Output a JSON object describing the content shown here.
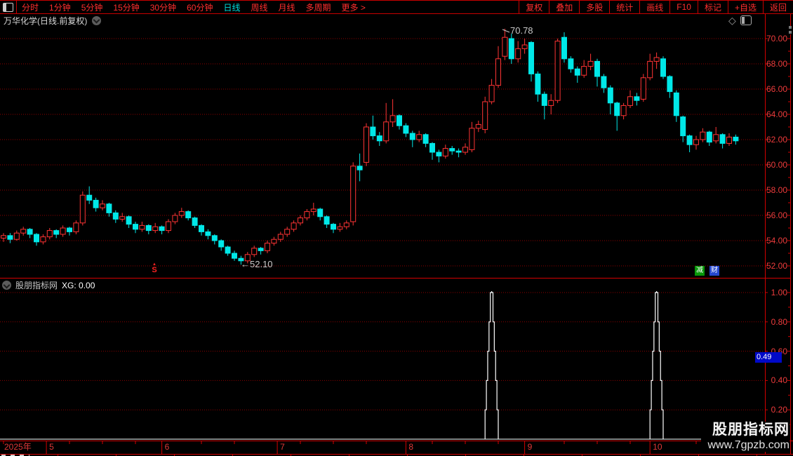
{
  "colors": {
    "up": "#ff3434",
    "down": "#00e8e8",
    "grid": "#8f0000",
    "axis_line": "#d40000",
    "axis_text": "#ee3c3c",
    "indicator_line": "#ffffff",
    "badge_bg": "#0009c8",
    "active_tab": "#00dede",
    "menu_text": "#ff2e2e"
  },
  "icons": {
    "diamond": "◇",
    "left_arrow": "←",
    "up_triangle": "▲"
  },
  "menu": {
    "left": [
      "分时",
      "1分钟",
      "5分钟",
      "15分钟",
      "30分钟",
      "60分钟",
      "日线",
      "周线",
      "月线",
      "多周期",
      "更多 >"
    ],
    "active": "日线",
    "right": [
      "复权",
      "叠加",
      "多股",
      "统计",
      "画线",
      "F10",
      "标记",
      "+自选",
      "返回"
    ]
  },
  "title": {
    "text": "万华化学(日线.前复权)"
  },
  "main_chart": {
    "high_annotation": "70.78",
    "low_annotation": "52.10",
    "markers": {
      "ex_dividend": "S",
      "jian": "减",
      "cai": "财"
    }
  },
  "sub_chart": {
    "name": "股朋指标网",
    "series_label": "XG:",
    "series_value": "0.00",
    "axis_badge": "0.49"
  },
  "watermark": {
    "line1": "股朋指标网",
    "line2": "www.7gpzb.com"
  },
  "chart_data": {
    "type": "candlestick",
    "title": "万华化学(日线.前复权)",
    "x": {
      "year_label": "2025年",
      "month_labels": [
        "5",
        "6",
        "7",
        "8",
        "9",
        "10"
      ],
      "month_day_index": [
        6.5,
        24,
        41.5,
        61,
        79,
        98
      ],
      "num_days": 112
    },
    "price_panel": {
      "ylim": [
        51.6,
        71.6
      ],
      "yticks": [
        52,
        54,
        56,
        58,
        60,
        62,
        64,
        66,
        68,
        70
      ],
      "high_annotation": 70.78,
      "low_annotation": 52.1,
      "candles": [
        [
          54.2,
          54.6,
          53.9,
          54.4
        ],
        [
          54.4,
          54.6,
          53.8,
          54.1
        ],
        [
          54.1,
          54.8,
          54.0,
          54.6
        ],
        [
          54.6,
          55.1,
          54.4,
          54.9
        ],
        [
          54.9,
          55.0,
          54.2,
          54.5
        ],
        [
          54.5,
          54.6,
          53.6,
          53.9
        ],
        [
          53.9,
          54.5,
          53.7,
          54.3
        ],
        [
          54.3,
          55.0,
          54.1,
          54.8
        ],
        [
          54.8,
          54.9,
          54.2,
          54.5
        ],
        [
          54.5,
          55.2,
          54.3,
          55.0
        ],
        [
          55.0,
          55.1,
          54.4,
          54.7
        ],
        [
          54.7,
          55.6,
          54.5,
          55.4
        ],
        [
          55.4,
          57.9,
          55.2,
          57.6
        ],
        [
          57.6,
          58.3,
          56.9,
          57.2
        ],
        [
          57.2,
          57.4,
          56.3,
          56.6
        ],
        [
          56.6,
          57.2,
          56.4,
          56.9
        ],
        [
          56.9,
          57.0,
          55.9,
          56.2
        ],
        [
          56.2,
          56.4,
          55.4,
          55.7
        ],
        [
          55.7,
          56.2,
          55.5,
          55.9
        ],
        [
          55.9,
          56.0,
          55.0,
          55.3
        ],
        [
          55.3,
          55.5,
          54.6,
          54.9
        ],
        [
          54.9,
          55.5,
          54.7,
          55.2
        ],
        [
          55.2,
          55.3,
          54.5,
          54.8
        ],
        [
          54.8,
          55.4,
          54.6,
          55.1
        ],
        [
          55.1,
          55.2,
          54.5,
          54.8
        ],
        [
          54.8,
          55.7,
          54.6,
          55.5
        ],
        [
          55.5,
          56.2,
          55.3,
          56.0
        ],
        [
          56.0,
          56.6,
          55.8,
          56.3
        ],
        [
          56.3,
          56.4,
          55.6,
          55.8
        ],
        [
          55.8,
          55.9,
          55.0,
          55.2
        ],
        [
          55.2,
          55.3,
          54.4,
          54.7
        ],
        [
          54.7,
          54.9,
          54.1,
          54.4
        ],
        [
          54.4,
          54.5,
          53.7,
          54.0
        ],
        [
          54.0,
          54.1,
          53.2,
          53.5
        ],
        [
          53.5,
          53.6,
          52.8,
          53.0
        ],
        [
          53.0,
          53.2,
          52.4,
          52.6
        ],
        [
          52.6,
          52.8,
          52.1,
          52.4
        ],
        [
          52.4,
          53.1,
          52.2,
          52.9
        ],
        [
          52.9,
          53.6,
          52.7,
          53.4
        ],
        [
          53.4,
          53.5,
          52.9,
          53.2
        ],
        [
          53.2,
          54.0,
          53.0,
          53.8
        ],
        [
          53.8,
          54.3,
          53.6,
          54.1
        ],
        [
          54.1,
          54.7,
          53.9,
          54.5
        ],
        [
          54.5,
          55.1,
          54.3,
          54.9
        ],
        [
          54.9,
          55.6,
          54.7,
          55.4
        ],
        [
          55.4,
          56.0,
          55.2,
          55.8
        ],
        [
          55.8,
          56.5,
          55.6,
          56.3
        ],
        [
          56.3,
          57.0,
          56.0,
          56.5
        ],
        [
          56.5,
          56.6,
          55.6,
          55.9
        ],
        [
          55.9,
          56.0,
          55.0,
          55.3
        ],
        [
          55.3,
          55.4,
          54.6,
          54.9
        ],
        [
          54.9,
          55.4,
          54.7,
          55.1
        ],
        [
          55.1,
          55.6,
          54.9,
          55.4
        ],
        [
          55.5,
          60.2,
          55.2,
          59.9
        ],
        [
          59.9,
          60.9,
          58.7,
          59.6
        ],
        [
          60.2,
          63.3,
          59.9,
          63.0
        ],
        [
          63.0,
          63.9,
          62.0,
          62.3
        ],
        [
          62.3,
          62.6,
          61.5,
          61.9
        ],
        [
          61.9,
          64.9,
          61.7,
          63.4
        ],
        [
          63.4,
          65.2,
          63.0,
          63.9
        ],
        [
          63.9,
          64.0,
          62.8,
          63.1
        ],
        [
          63.1,
          63.3,
          62.2,
          62.5
        ],
        [
          62.5,
          62.7,
          61.4,
          62.0
        ],
        [
          62.0,
          62.7,
          61.8,
          62.4
        ],
        [
          62.4,
          62.5,
          61.4,
          61.7
        ],
        [
          61.7,
          61.8,
          60.4,
          61.0
        ],
        [
          61.0,
          61.2,
          60.2,
          60.7
        ],
        [
          60.7,
          61.6,
          60.5,
          61.3
        ],
        [
          61.3,
          61.5,
          60.8,
          61.1
        ],
        [
          61.1,
          61.3,
          60.6,
          61.0
        ],
        [
          61.0,
          61.7,
          60.8,
          61.4
        ],
        [
          61.2,
          63.4,
          61.0,
          62.9
        ],
        [
          62.9,
          63.5,
          62.6,
          63.2
        ],
        [
          62.8,
          65.4,
          62.5,
          65.0
        ],
        [
          65.0,
          66.8,
          64.8,
          66.3
        ],
        [
          66.3,
          69.4,
          66.1,
          68.4
        ],
        [
          68.6,
          70.78,
          68.3,
          70.1
        ],
        [
          70.0,
          70.4,
          68.0,
          68.4
        ],
        [
          68.4,
          69.8,
          68.1,
          69.2
        ],
        [
          69.2,
          70.0,
          68.8,
          69.5
        ],
        [
          69.7,
          69.8,
          66.6,
          67.2
        ],
        [
          67.2,
          67.4,
          65.0,
          65.6
        ],
        [
          65.6,
          65.8,
          63.6,
          64.7
        ],
        [
          64.7,
          65.6,
          64.0,
          65.1
        ],
        [
          65.1,
          70.0,
          64.9,
          69.8
        ],
        [
          70.1,
          70.5,
          68.1,
          68.4
        ],
        [
          68.4,
          68.6,
          67.3,
          67.6
        ],
        [
          67.6,
          67.8,
          66.5,
          67.1
        ],
        [
          67.1,
          68.3,
          66.9,
          67.8
        ],
        [
          67.8,
          68.8,
          67.5,
          68.2
        ],
        [
          68.2,
          68.4,
          66.2,
          67.0
        ],
        [
          67.0,
          67.2,
          65.7,
          66.1
        ],
        [
          66.1,
          66.3,
          64.0,
          64.9
        ],
        [
          64.9,
          65.0,
          62.7,
          63.9
        ],
        [
          63.9,
          64.9,
          63.6,
          64.7
        ],
        [
          64.7,
          65.9,
          64.5,
          65.4
        ],
        [
          65.4,
          65.7,
          64.7,
          65.1
        ],
        [
          65.2,
          67.2,
          65.0,
          66.9
        ],
        [
          66.9,
          68.8,
          66.7,
          68.2
        ],
        [
          68.2,
          68.9,
          67.6,
          68.5
        ],
        [
          68.4,
          68.6,
          66.8,
          67.0
        ],
        [
          67.0,
          67.1,
          65.3,
          65.8
        ],
        [
          65.7,
          65.9,
          63.4,
          63.9
        ],
        [
          63.8,
          63.9,
          61.8,
          62.3
        ],
        [
          62.3,
          62.4,
          61.0,
          61.6
        ],
        [
          61.6,
          62.3,
          61.2,
          62.0
        ],
        [
          62.0,
          62.9,
          61.8,
          62.6
        ],
        [
          62.6,
          62.7,
          61.5,
          61.8
        ],
        [
          61.9,
          63.0,
          61.7,
          62.4
        ],
        [
          62.4,
          62.5,
          61.3,
          61.7
        ],
        [
          61.7,
          62.5,
          61.5,
          62.2
        ],
        [
          62.2,
          62.4,
          61.6,
          61.9
        ]
      ]
    },
    "indicator_panel": {
      "type": "line",
      "name": "股朋指标网",
      "series": "XG",
      "current_value": 0.0,
      "ylim": [
        0,
        1.05
      ],
      "yticks": [
        0.2,
        0.4,
        0.6,
        0.8,
        1.0
      ],
      "axis_marker_value": 0.49,
      "baseline": 0,
      "spikes": [
        {
          "day": 74,
          "value": 1.0
        },
        {
          "day": 99,
          "value": 1.0
        }
      ]
    }
  }
}
